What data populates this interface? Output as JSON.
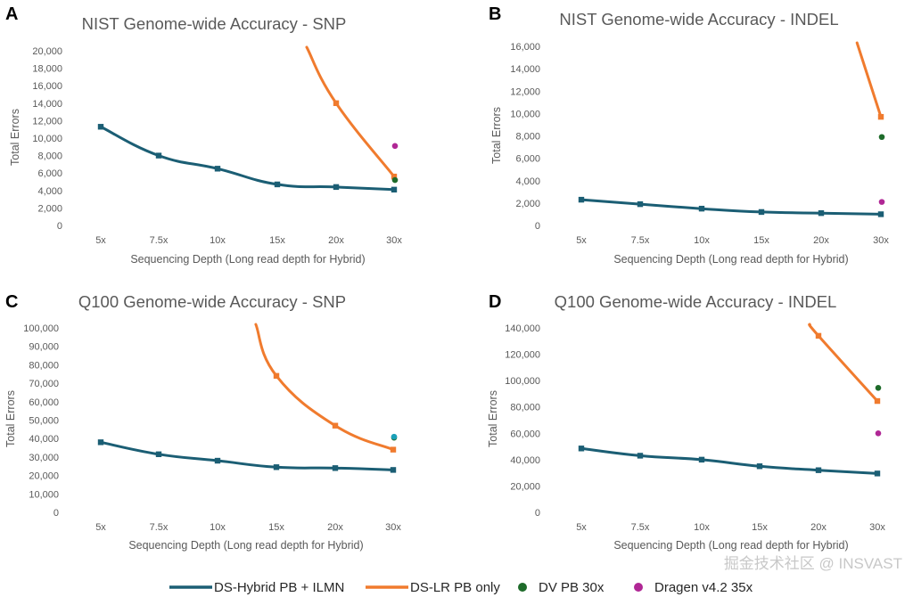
{
  "legend": [
    {
      "label": "DS-Hybrid PB + ILMN",
      "kind": "line",
      "color": "#1b5e74"
    },
    {
      "label": "DS-LR PB only",
      "kind": "line",
      "color": "#f07b2e"
    },
    {
      "label": "DV PB 30x",
      "kind": "dot",
      "color": "#1e6b2a"
    },
    {
      "label": "Dragen v4.2 35x",
      "kind": "dot",
      "color": "#b02795"
    }
  ],
  "watermark": "掘金技术社区 @ INSVAST",
  "chart_data": [
    {
      "panel": "A",
      "type": "line",
      "title": "NIST Genome-wide Accuracy - SNP",
      "xlabel": "Sequencing Depth (Long read depth for Hybrid)",
      "ylabel": "Total Errors",
      "categories": [
        "5x",
        "7.5x",
        "10x",
        "15x",
        "20x",
        "30x"
      ],
      "yticks": [
        "0",
        "2,000",
        "4,000",
        "6,000",
        "8,000",
        "10,000",
        "12,000",
        "14,000",
        "16,000",
        "18,000",
        "20,000"
      ],
      "ylim": [
        0,
        20000
      ],
      "series": [
        {
          "name": "DS-Hybrid PB + ILMN",
          "values": [
            11300,
            8000,
            6500,
            4700,
            4400,
            4100
          ],
          "color": "#1b5e74"
        },
        {
          "name": "DS-LR PB only",
          "values": [
            null,
            null,
            null,
            null,
            14000,
            5600
          ],
          "above_axis_at": 3.5,
          "color": "#f07b2e"
        }
      ],
      "points": [
        {
          "name": "DV PB 30x",
          "x": "30x",
          "y": 5200,
          "color": "#1e6b2a"
        },
        {
          "name": "Dragen v4.2 35x",
          "x": "30x",
          "y": 9100,
          "color": "#b02795"
        }
      ]
    },
    {
      "panel": "B",
      "type": "line",
      "title": "NIST Genome-wide Accuracy - INDEL",
      "xlabel": "Sequencing Depth (Long read depth for Hybrid)",
      "ylabel": "Total Errors",
      "categories": [
        "5x",
        "7.5x",
        "10x",
        "15x",
        "20x",
        "30x"
      ],
      "yticks": [
        "0",
        "2,000",
        "4,000",
        "6,000",
        "8,000",
        "10,000",
        "12,000",
        "14,000",
        "16,000"
      ],
      "ylim": [
        0,
        16000
      ],
      "series": [
        {
          "name": "DS-Hybrid PB + ILMN",
          "values": [
            2300,
            1900,
            1500,
            1200,
            1100,
            1000
          ],
          "color": "#1b5e74"
        },
        {
          "name": "DS-LR PB only",
          "values": [
            null,
            null,
            null,
            null,
            null,
            9700
          ],
          "above_axis_at": 4.6,
          "color": "#f07b2e"
        }
      ],
      "points": [
        {
          "name": "DV PB 30x",
          "x": "30x",
          "y": 7900,
          "color": "#1e6b2a"
        },
        {
          "name": "Dragen v4.2 35x",
          "x": "30x",
          "y": 2100,
          "color": "#b02795"
        }
      ]
    },
    {
      "panel": "C",
      "type": "line",
      "title": "Q100 Genome-wide Accuracy - SNP",
      "xlabel": "Sequencing Depth (Long read depth for Hybrid)",
      "ylabel": "Total Errors",
      "categories": [
        "5x",
        "7.5x",
        "10x",
        "15x",
        "20x",
        "30x"
      ],
      "yticks": [
        "0",
        "10,000",
        "20,000",
        "30,000",
        "40,000",
        "50,000",
        "60,000",
        "70,000",
        "80,000",
        "90,000",
        "100,000"
      ],
      "ylim": [
        0,
        100000
      ],
      "series": [
        {
          "name": "DS-Hybrid PB + ILMN",
          "values": [
            38000,
            31500,
            28000,
            24500,
            24000,
            23000
          ],
          "color": "#1b5e74"
        },
        {
          "name": "DS-LR PB only",
          "values": [
            null,
            null,
            null,
            74000,
            47000,
            34000
          ],
          "above_axis_at": 2.65,
          "color": "#f07b2e"
        }
      ],
      "points": [
        {
          "name": "DV PB 30x",
          "x": "30x",
          "y": 40500,
          "color": "#1e6b2a"
        },
        {
          "name": "Dragen v4.2 35x",
          "x": "30x",
          "y": 41000,
          "color": "#1aa0b8"
        }
      ]
    },
    {
      "panel": "D",
      "type": "line",
      "title": "Q100 Genome-wide Accuracy - INDEL",
      "xlabel": "Sequencing Depth (Long read depth for Hybrid)",
      "ylabel": "Total Errors",
      "categories": [
        "5x",
        "7.5x",
        "10x",
        "15x",
        "20x",
        "30x"
      ],
      "yticks": [
        "0",
        "20,000",
        "40,000",
        "60,000",
        "80,000",
        "100,000",
        "120,000",
        "140,000"
      ],
      "ylim": [
        0,
        140000
      ],
      "series": [
        {
          "name": "DS-Hybrid PB + ILMN",
          "values": [
            48500,
            43000,
            40000,
            35000,
            32000,
            29500
          ],
          "color": "#1b5e74"
        },
        {
          "name": "DS-LR PB only",
          "values": [
            null,
            null,
            null,
            null,
            134000,
            84500
          ],
          "above_axis_at": 3.85,
          "color": "#f07b2e"
        }
      ],
      "points": [
        {
          "name": "DV PB 30x",
          "x": "30x",
          "y": 94500,
          "color": "#1e6b2a"
        },
        {
          "name": "Dragen v4.2 35x",
          "x": "30x",
          "y": 60000,
          "color": "#b02795"
        }
      ]
    }
  ]
}
